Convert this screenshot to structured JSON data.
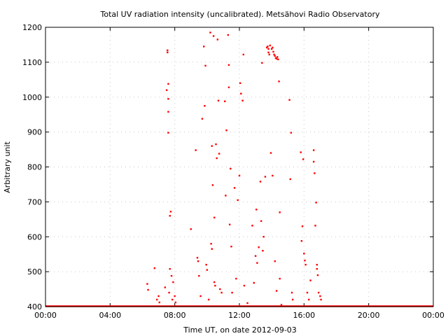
{
  "chart_data": {
    "type": "scatter",
    "title": "Total UV radiation intensity (uncalibrated). Metsähovi Radio Observatory",
    "xlabel": "Time UT, on date 2012-09-03",
    "ylabel": "Arbitrary unit",
    "x_unit": "hours UT",
    "xlim": [
      0,
      24
    ],
    "ylim": [
      400,
      1200
    ],
    "grid": true,
    "x_ticks": [
      {
        "value": 0,
        "label": "00:00"
      },
      {
        "value": 4,
        "label": "04:00"
      },
      {
        "value": 8,
        "label": "08:00"
      },
      {
        "value": 12,
        "label": "12:00"
      },
      {
        "value": 16,
        "label": "16:00"
      },
      {
        "value": 20,
        "label": "20:00"
      },
      {
        "value": 24,
        "label": "00:00"
      }
    ],
    "y_ticks": [
      {
        "value": 400,
        "label": "400"
      },
      {
        "value": 500,
        "label": "500"
      },
      {
        "value": 600,
        "label": "600"
      },
      {
        "value": 700,
        "label": "700"
      },
      {
        "value": 800,
        "label": "800"
      },
      {
        "value": 900,
        "label": "900"
      },
      {
        "value": 1000,
        "label": "1000"
      },
      {
        "value": 1100,
        "label": "1100"
      },
      {
        "value": 1200,
        "label": "1200"
      }
    ],
    "series": [
      {
        "color": "#ff0000",
        "marker": "dot",
        "baseline": {
          "y": 400,
          "x_range": [
            0,
            24
          ]
        },
        "points": [
          [
            6.3,
            465
          ],
          [
            6.35,
            448
          ],
          [
            6.75,
            510
          ],
          [
            6.9,
            420
          ],
          [
            7.0,
            430
          ],
          [
            7.05,
            412
          ],
          [
            7.4,
            455
          ],
          [
            7.5,
            1020
          ],
          [
            7.55,
            1128
          ],
          [
            7.55,
            1134
          ],
          [
            7.6,
            1038
          ],
          [
            7.6,
            995
          ],
          [
            7.6,
            958
          ],
          [
            7.6,
            898
          ],
          [
            7.65,
            440
          ],
          [
            7.7,
            508
          ],
          [
            7.7,
            660
          ],
          [
            7.75,
            672
          ],
          [
            7.8,
            488
          ],
          [
            7.85,
            420
          ],
          [
            7.9,
            470
          ],
          [
            8.0,
            430
          ],
          [
            8.05,
            412
          ],
          [
            9.0,
            622
          ],
          [
            9.3,
            848
          ],
          [
            9.4,
            540
          ],
          [
            9.45,
            530
          ],
          [
            9.5,
            488
          ],
          [
            9.6,
            430
          ],
          [
            9.7,
            938
          ],
          [
            9.8,
            1145
          ],
          [
            9.85,
            975
          ],
          [
            9.9,
            1090
          ],
          [
            9.95,
            520
          ],
          [
            10.0,
            505
          ],
          [
            10.1,
            420
          ],
          [
            10.2,
            1185
          ],
          [
            10.25,
            580
          ],
          [
            10.3,
            565
          ],
          [
            10.3,
            860
          ],
          [
            10.35,
            748
          ],
          [
            10.4,
            1175
          ],
          [
            10.45,
            655
          ],
          [
            10.45,
            470
          ],
          [
            10.5,
            460
          ],
          [
            10.55,
            865
          ],
          [
            10.6,
            825
          ],
          [
            10.65,
            1165
          ],
          [
            10.7,
            990
          ],
          [
            10.75,
            838
          ],
          [
            10.8,
            450
          ],
          [
            10.9,
            440
          ],
          [
            11.1,
            988
          ],
          [
            11.15,
            718
          ],
          [
            11.2,
            905
          ],
          [
            11.3,
            1178
          ],
          [
            11.35,
            1092
          ],
          [
            11.35,
            1028
          ],
          [
            11.4,
            635
          ],
          [
            11.45,
            795
          ],
          [
            11.5,
            572
          ],
          [
            11.55,
            440
          ],
          [
            11.7,
            740
          ],
          [
            11.8,
            480
          ],
          [
            11.9,
            705
          ],
          [
            12.0,
            775
          ],
          [
            12.05,
            1040
          ],
          [
            12.1,
            1010
          ],
          [
            12.2,
            990
          ],
          [
            12.25,
            1122
          ],
          [
            12.3,
            460
          ],
          [
            12.5,
            410
          ],
          [
            12.8,
            632
          ],
          [
            12.9,
            468
          ],
          [
            13.0,
            545
          ],
          [
            13.05,
            678
          ],
          [
            13.1,
            525
          ],
          [
            13.2,
            570
          ],
          [
            13.3,
            758
          ],
          [
            13.35,
            645
          ],
          [
            13.4,
            1098
          ],
          [
            13.45,
            560
          ],
          [
            13.5,
            600
          ],
          [
            13.6,
            772
          ],
          [
            13.7,
            1142
          ],
          [
            13.75,
            1145
          ],
          [
            13.8,
            1138
          ],
          [
            13.8,
            1128
          ],
          [
            13.85,
            1122
          ],
          [
            13.9,
            1148
          ],
          [
            13.95,
            840
          ],
          [
            14.0,
            1138
          ],
          [
            14.05,
            1142
          ],
          [
            14.1,
            1130
          ],
          [
            14.15,
            1122
          ],
          [
            14.2,
            1118
          ],
          [
            14.25,
            1112
          ],
          [
            14.3,
            1110
          ],
          [
            14.35,
            1115
          ],
          [
            14.4,
            1108
          ],
          [
            14.05,
            775
          ],
          [
            14.2,
            530
          ],
          [
            14.3,
            445
          ],
          [
            14.45,
            1045
          ],
          [
            14.5,
            670
          ],
          [
            14.5,
            480
          ],
          [
            14.6,
            405
          ],
          [
            15.1,
            992
          ],
          [
            15.15,
            765
          ],
          [
            15.2,
            898
          ],
          [
            15.25,
            440
          ],
          [
            15.3,
            420
          ],
          [
            15.8,
            842
          ],
          [
            15.85,
            588
          ],
          [
            15.9,
            630
          ],
          [
            15.95,
            822
          ],
          [
            16.0,
            552
          ],
          [
            16.05,
            532
          ],
          [
            16.1,
            520
          ],
          [
            16.2,
            440
          ],
          [
            16.3,
            420
          ],
          [
            16.4,
            475
          ],
          [
            16.6,
            848
          ],
          [
            16.6,
            815
          ],
          [
            16.65,
            782
          ],
          [
            16.7,
            632
          ],
          [
            16.75,
            698
          ],
          [
            16.8,
            508
          ],
          [
            16.8,
            520
          ],
          [
            16.85,
            490
          ],
          [
            16.9,
            440
          ],
          [
            17.0,
            430
          ],
          [
            17.05,
            420
          ]
        ]
      }
    ]
  }
}
